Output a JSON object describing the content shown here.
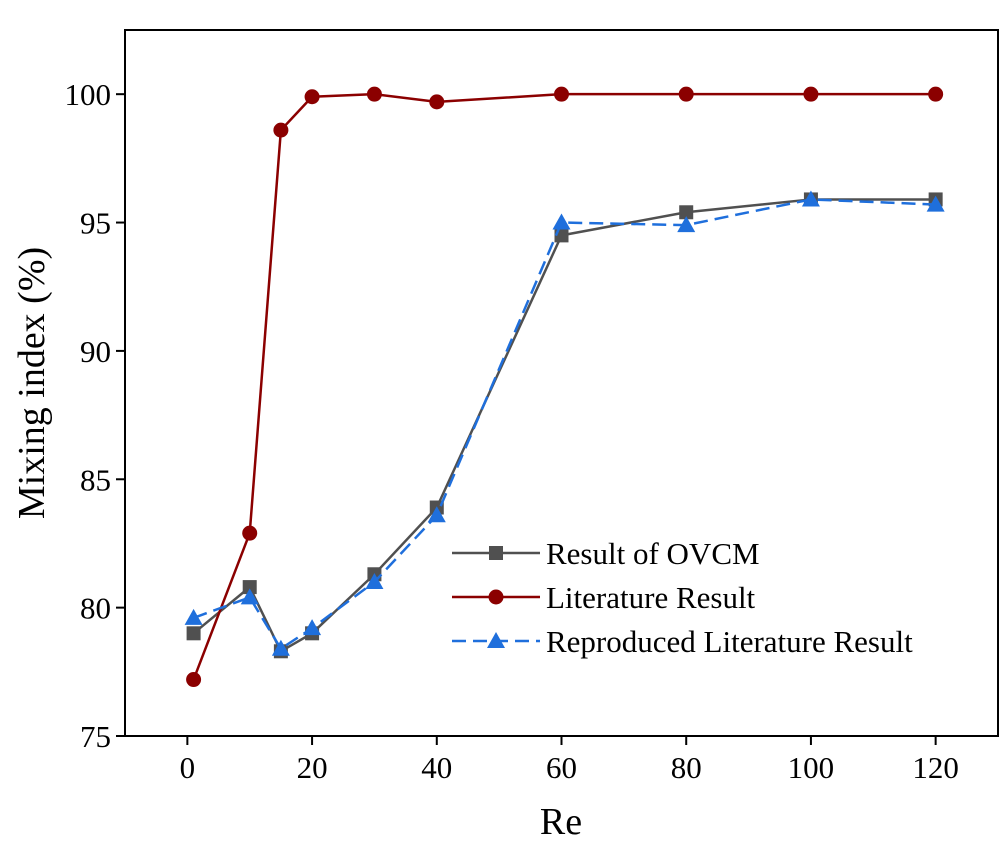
{
  "chart_data": {
    "type": "line",
    "xlabel": "Re",
    "ylabel": "Mixing index (%)",
    "xlim": [
      -10,
      130
    ],
    "ylim": [
      75,
      102.5
    ],
    "xticks": [
      0,
      20,
      40,
      60,
      80,
      100,
      120
    ],
    "yticks": [
      75,
      80,
      85,
      90,
      95,
      100
    ],
    "grid": false,
    "legend_position": "bottom-right",
    "series": [
      {
        "name": "Result of OVCM",
        "color": "#505050",
        "marker": "square",
        "dash": "solid",
        "x": [
          1,
          10,
          15,
          20,
          30,
          40,
          60,
          80,
          100,
          120
        ],
        "y": [
          79.0,
          80.8,
          78.3,
          79.0,
          81.3,
          83.9,
          94.5,
          95.4,
          95.9,
          95.9
        ]
      },
      {
        "name": "Literature Result",
        "color": "#8b0000",
        "marker": "circle",
        "dash": "solid",
        "x": [
          1,
          10,
          15,
          20,
          30,
          40,
          60,
          80,
          100,
          120
        ],
        "y": [
          77.2,
          82.9,
          98.6,
          99.9,
          100.0,
          99.7,
          100.0,
          100.0,
          100.0,
          100.0
        ]
      },
      {
        "name": "Reproduced  Literature Result",
        "color": "#1f6fdc",
        "marker": "triangle",
        "dash": "dashed",
        "x": [
          1,
          10,
          15,
          20,
          30,
          40,
          60,
          80,
          100,
          120
        ],
        "y": [
          79.6,
          80.4,
          78.4,
          79.2,
          81.0,
          83.6,
          95.0,
          94.9,
          95.9,
          95.7
        ]
      }
    ]
  }
}
